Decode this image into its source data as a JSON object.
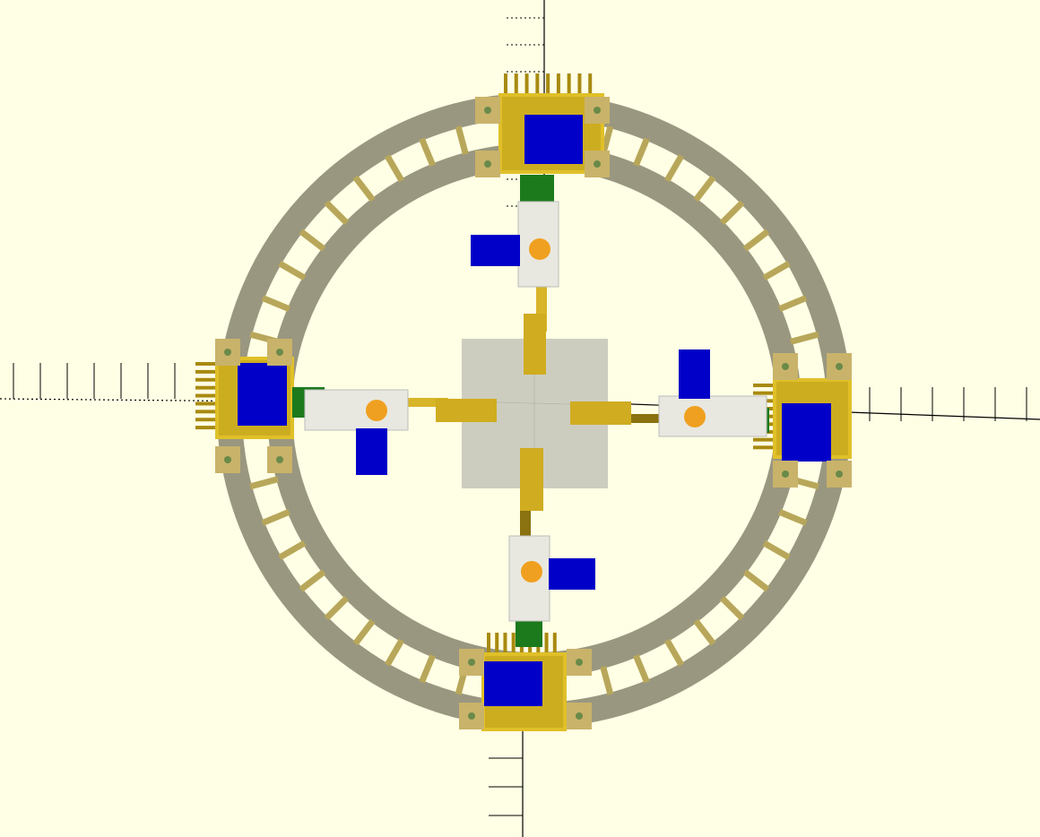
{
  "viewport": {
    "background": "#ffffe5",
    "projection": "orthographic-top"
  },
  "model": {
    "modules": [
      "top",
      "right",
      "bottom",
      "left"
    ],
    "colors": {
      "track": "#9a9780",
      "strut": "#b8a75a",
      "housing": "#e0c028",
      "housing_dark": "#a88a10",
      "motor": "#0000c8",
      "coupler": "#1c7a1c",
      "gear": "#f0a020",
      "rail": "#e8e8e0",
      "hub": "#c4c4b8",
      "arm": "#d8b428",
      "axis": "#000000"
    },
    "legend_labels": []
  }
}
